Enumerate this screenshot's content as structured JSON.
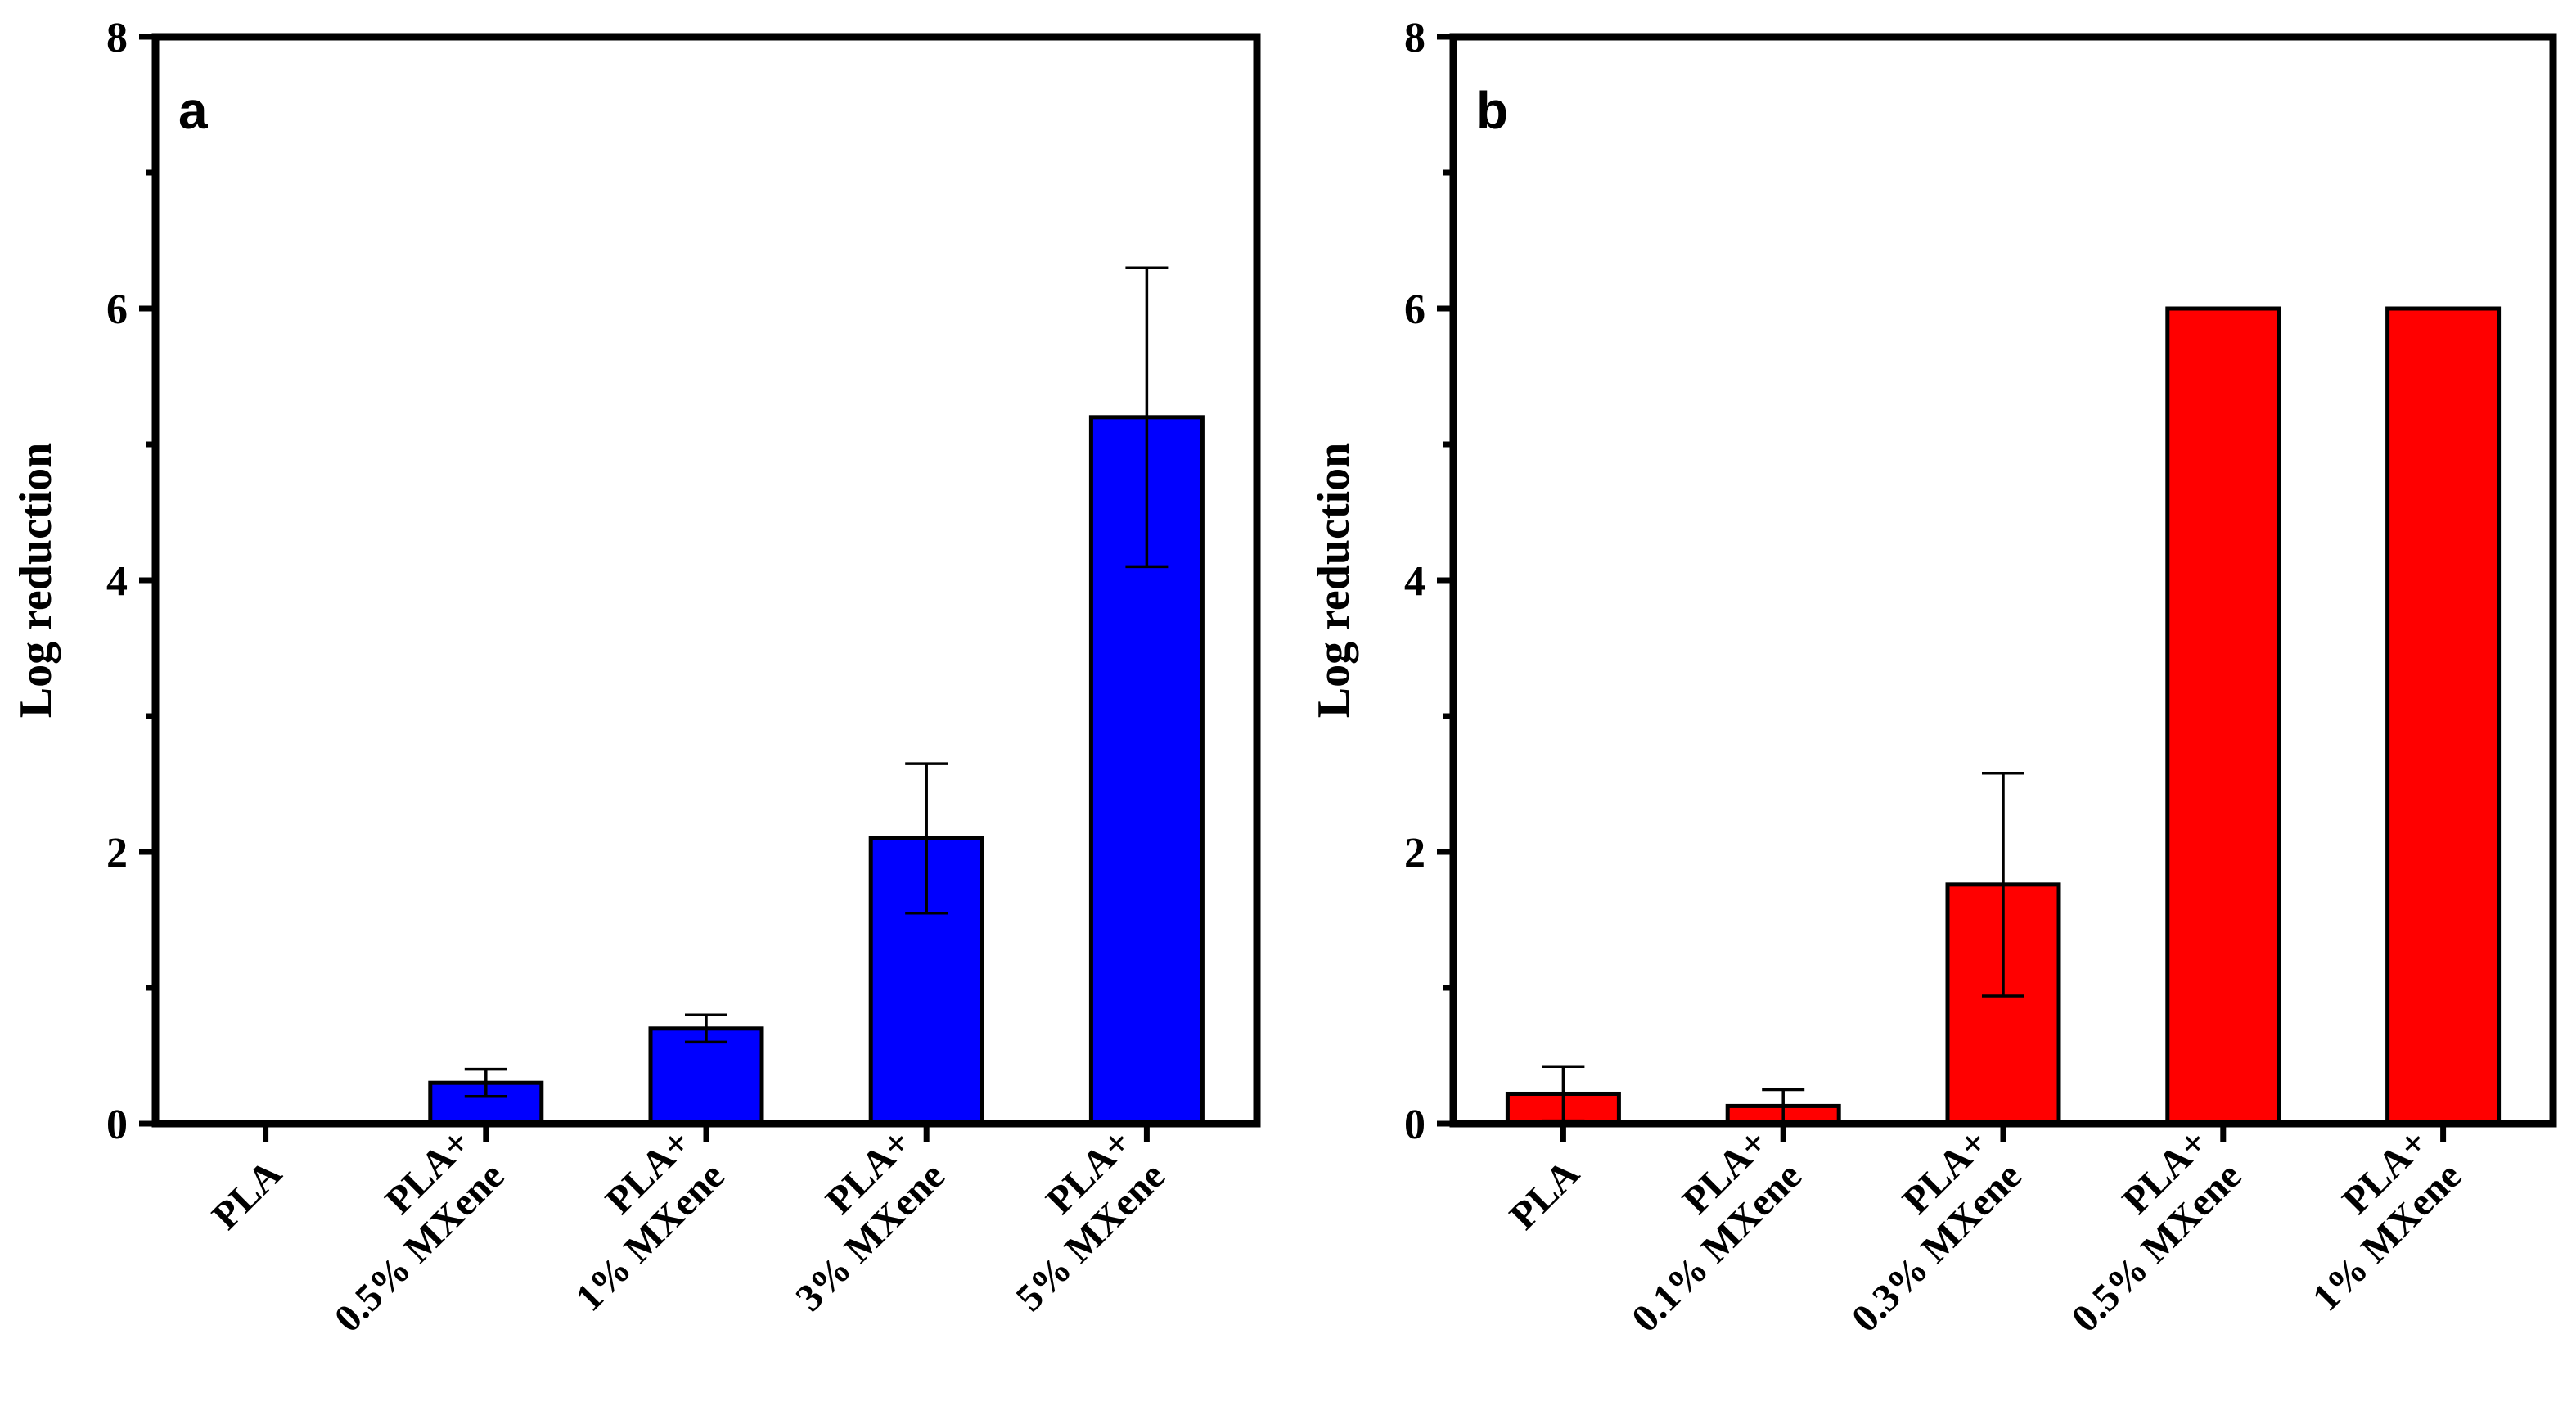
{
  "chart_data": [
    {
      "type": "bar",
      "panel_label": "a",
      "ylabel": "Log reduction",
      "xlabel": "",
      "ylim": [
        0,
        8
      ],
      "yticks": [
        0,
        2,
        4,
        6,
        8
      ],
      "grid": false,
      "bar_color": "#0000FF",
      "categories": [
        [
          "PLA"
        ],
        [
          "PLA+",
          "0.5% MXene"
        ],
        [
          "PLA+",
          "1% MXene"
        ],
        [
          "PLA+",
          "3% MXene"
        ],
        [
          "PLA+",
          "5% MXene"
        ]
      ],
      "values": [
        0,
        0.3,
        0.7,
        2.1,
        5.2
      ],
      "errors": [
        null,
        0.1,
        0.1,
        0.55,
        1.1
      ]
    },
    {
      "type": "bar",
      "panel_label": "b",
      "ylabel": "Log reduction",
      "xlabel": "",
      "ylim": [
        0,
        8
      ],
      "yticks": [
        0,
        2,
        4,
        6,
        8
      ],
      "grid": false,
      "bar_color": "#FF0000",
      "categories": [
        [
          "PLA"
        ],
        [
          "PLA+",
          "0.1% MXene"
        ],
        [
          "PLA+",
          "0.3% MXene"
        ],
        [
          "PLA+",
          "0.5% MXene"
        ],
        [
          "PLA+",
          "1% MXene"
        ]
      ],
      "values": [
        0.22,
        0.13,
        1.76,
        6.0,
        6.0
      ],
      "errors": [
        0.2,
        0.12,
        0.82,
        null,
        null
      ]
    }
  ]
}
